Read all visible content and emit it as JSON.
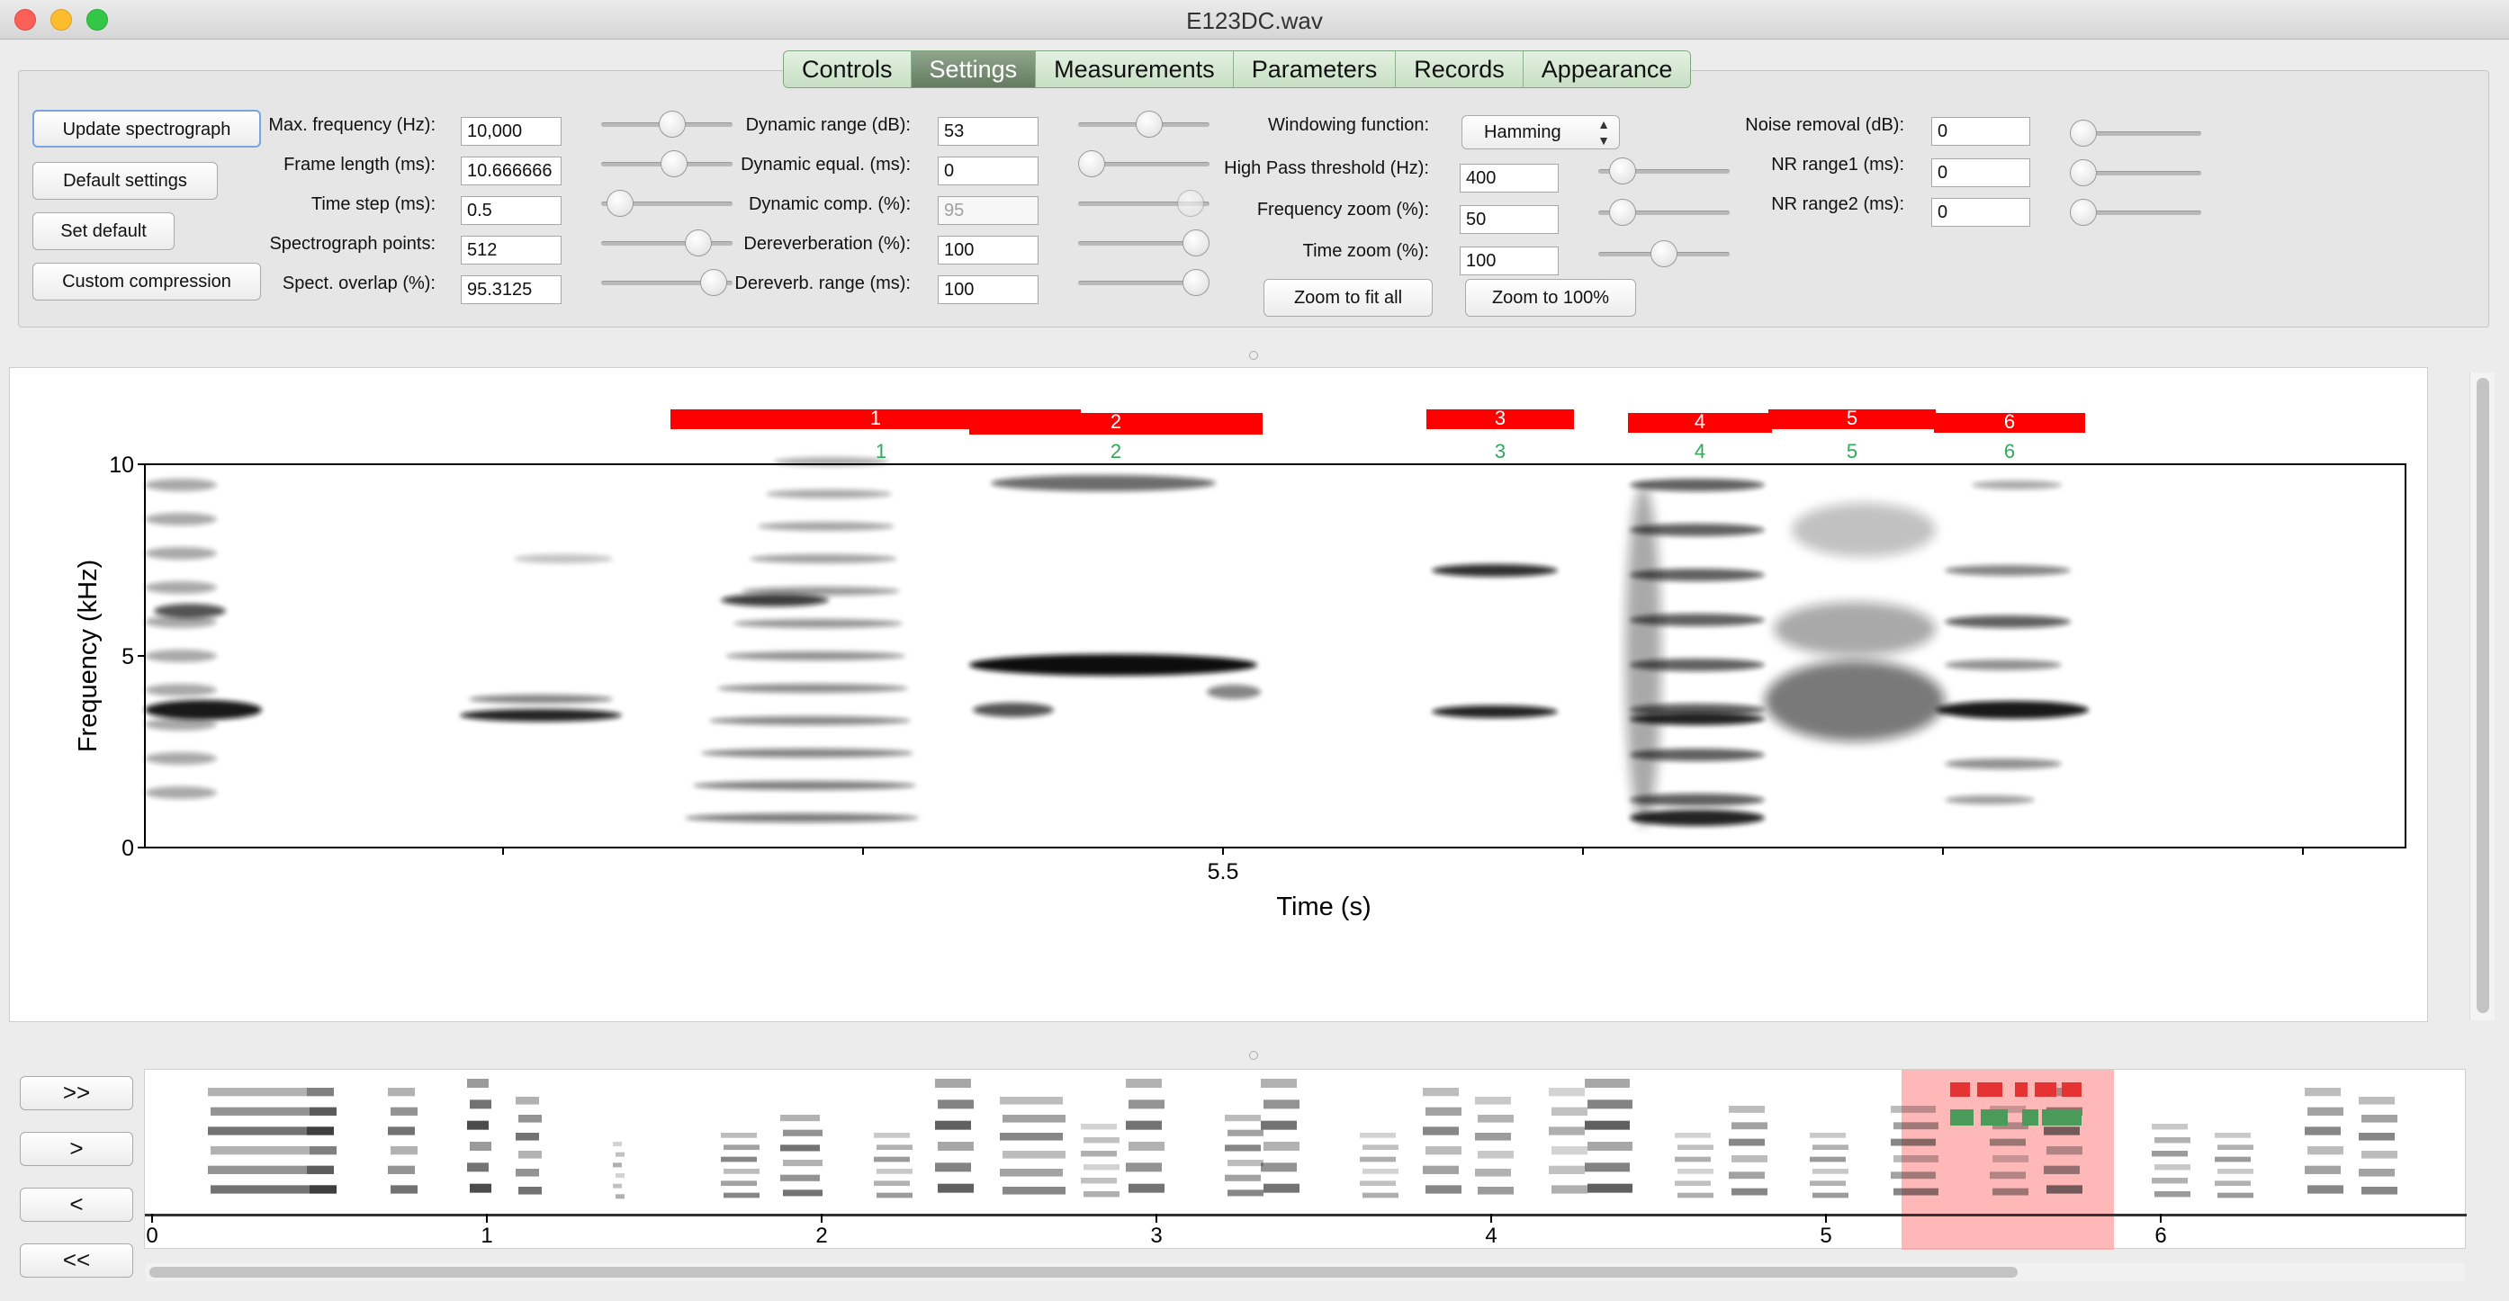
{
  "window": {
    "title": "E123DC.wav"
  },
  "tabs": [
    {
      "label": "Controls",
      "active": false
    },
    {
      "label": "Settings",
      "active": true
    },
    {
      "label": "Measurements",
      "active": false
    },
    {
      "label": "Parameters",
      "active": false
    },
    {
      "label": "Records",
      "active": false
    },
    {
      "label": "Appearance",
      "active": false
    }
  ],
  "actions": {
    "update": "Update spectrograph",
    "defaults": "Default settings",
    "set_default": "Set default",
    "custom_compression": "Custom compression",
    "zoom_fit": "Zoom to fit all",
    "zoom_100": "Zoom to 100%"
  },
  "settings": {
    "max_frequency": {
      "label": "Max. frequency (Hz):",
      "value": "10,000",
      "slider": 0.55
    },
    "frame_length": {
      "label": "Frame length (ms):",
      "value": "10.666666",
      "slider": 0.57
    },
    "time_step": {
      "label": "Time step (ms):",
      "value": "0.5",
      "slider": 0.05
    },
    "spect_points": {
      "label": "Spectrograph points:",
      "value": "512",
      "slider": 0.8
    },
    "spect_overlap": {
      "label": "Spect. overlap (%):",
      "value": "95.3125",
      "slider": 0.95
    },
    "dynamic_range": {
      "label": "Dynamic range (dB):",
      "value": "53",
      "slider": 0.55
    },
    "dynamic_equal": {
      "label": "Dynamic equal. (ms):",
      "value": "0",
      "slider": 0.0
    },
    "dynamic_comp": {
      "label": "Dynamic comp. (%):",
      "value": "95",
      "slider": 0.95,
      "disabled": true
    },
    "dereverberation": {
      "label": "Dereverberation (%):",
      "value": "100",
      "slider": 1.0
    },
    "dereverb_range": {
      "label": "Dereverb. range (ms):",
      "value": "100",
      "slider": 1.0
    },
    "windowing": {
      "label": "Windowing function:",
      "value": "Hamming"
    },
    "high_pass": {
      "label": "High Pass threshold (Hz):",
      "value": "400",
      "slider": 0.1
    },
    "freq_zoom": {
      "label": "Frequency zoom (%):",
      "value": "50",
      "slider": 0.1
    },
    "time_zoom": {
      "label": "Time zoom (%):",
      "value": "100",
      "slider": 0.5
    },
    "noise_removal": {
      "label": "Noise removal (dB):",
      "value": "0",
      "slider": 0.0
    },
    "nr_range1": {
      "label": "NR range1 (ms):",
      "value": "0",
      "slider": 0.0
    },
    "nr_range2": {
      "label": "NR range2 (ms):",
      "value": "0",
      "slider": 0.0
    }
  },
  "spectrogram": {
    "ylabel": "Frequency (kHz)",
    "xlabel": "Time (s)",
    "y_ticks": [
      "0",
      "5",
      "10"
    ],
    "x_tick_label": "5.5",
    "segments": [
      {
        "label": "1",
        "green": "1"
      },
      {
        "label": "2",
        "green": "2"
      },
      {
        "label": "3",
        "green": "3"
      },
      {
        "label": "4",
        "green": "4"
      },
      {
        "label": "5",
        "green": "5"
      },
      {
        "label": "6",
        "green": "6"
      }
    ],
    "colors": {
      "segment": "#ff0000",
      "segment_text": "#ffffff",
      "green_label": "#2daa5a"
    }
  },
  "navigation": {
    "ff": ">>",
    "fwd": ">",
    "back": "<",
    "rew": "<<"
  },
  "overview": {
    "x_ticks": [
      "0",
      "1",
      "2",
      "3",
      "4",
      "5",
      "6"
    ],
    "highlight_color": "#ff9a9a"
  }
}
